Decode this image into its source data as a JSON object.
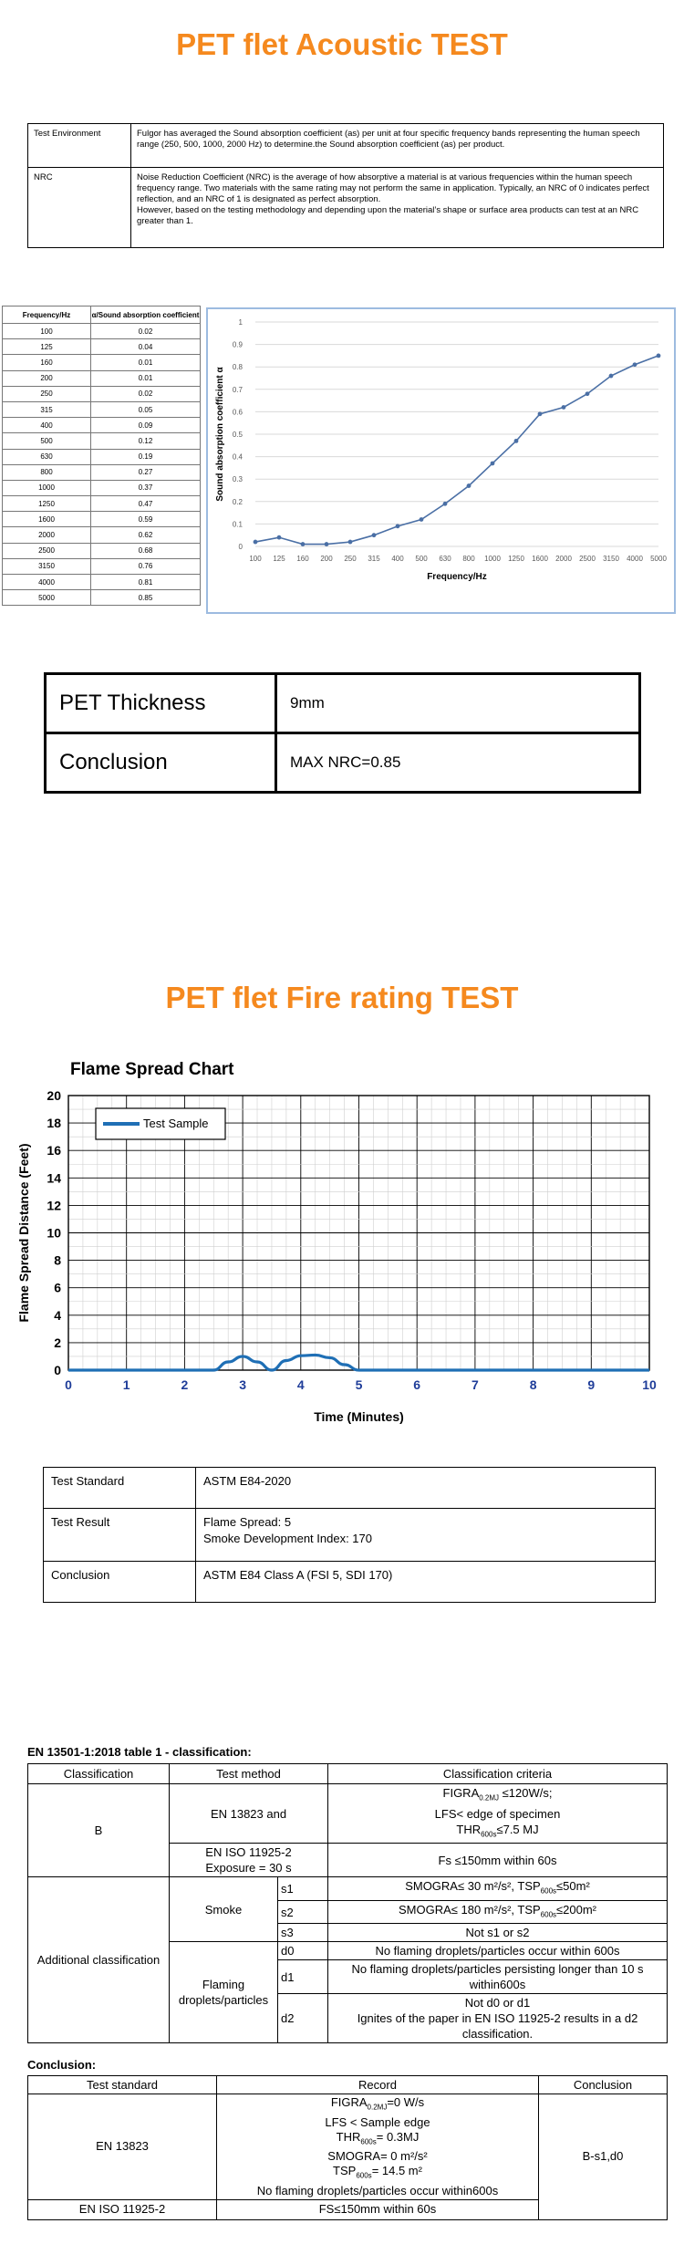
{
  "acoustic": {
    "title": "PET flet Acoustic TEST",
    "env_label": "Test Environment",
    "env_text": "Fulgor has averaged the Sound absorption coefficient (as) per unit at four specific frequency bands representing the human speech range (250, 500, 1000, 2000 Hz) to determine.the Sound absorption coefficient (as) per product.",
    "nrc_label": "NRC",
    "nrc_text_1": "Noise Reduction Coefficient (NRC) is the average of how absorptive a material is at various frequencies within the human speech frequency range. Two materials with the same rating may not perform the same in application. Typically, an NRC of 0 indicates perfect reflection, and an NRC of 1 is designated as perfect absorption.",
    "nrc_text_2": "However, based on the testing methodology and depending upon the material’s shape or surface area products can test at an NRC greater than 1.",
    "table_headers": [
      "Frequency/Hz",
      "α/Sound absorption coefficient"
    ],
    "table_rows": [
      [
        "100",
        "0.02"
      ],
      [
        "125",
        "0.04"
      ],
      [
        "160",
        "0.01"
      ],
      [
        "200",
        "0.01"
      ],
      [
        "250",
        "0.02"
      ],
      [
        "315",
        "0.05"
      ],
      [
        "400",
        "0.09"
      ],
      [
        "500",
        "0.12"
      ],
      [
        "630",
        "0.19"
      ],
      [
        "800",
        "0.27"
      ],
      [
        "1000",
        "0.37"
      ],
      [
        "1250",
        "0.47"
      ],
      [
        "1600",
        "0.59"
      ],
      [
        "2000",
        "0.62"
      ],
      [
        "2500",
        "0.68"
      ],
      [
        "3150",
        "0.76"
      ],
      [
        "4000",
        "0.81"
      ],
      [
        "5000",
        "0.85"
      ]
    ],
    "thickness_label": "PET Thickness",
    "thickness_value": "9mm",
    "conclusion_label": "Conclusion",
    "conclusion_value": "MAX NRC=0.85"
  },
  "fire": {
    "title": "PET flet Fire rating TEST",
    "std_label": "Test Standard",
    "std_value": "ASTM E84-2020",
    "result_label": "Test Result",
    "result_line1": "Flame Spread: 5",
    "result_line2": "Smoke Development Index: 170",
    "conc_label": "Conclusion",
    "conc_value": "ASTM E84 Class A (FSI 5, SDI 170)"
  },
  "en13501": {
    "heading": "EN 13501-1:2018 table 1 - classification:",
    "headers": [
      "Classification",
      "Test method",
      "Classification criteria"
    ],
    "class_b": "B",
    "en13823_and": "EN 13823 and",
    "figra": "FIGRA",
    "figra_sub": "0.2MJ",
    "figra_rest": " ≤120W/s;",
    "lfs_edge": "LFS< edge of specimen",
    "thr": "THR",
    "thr_sub": "600s",
    "thr_rest": "≤7.5 MJ",
    "en11925": "EN ISO 11925-2",
    "exposure": "Exposure = 30 s",
    "fs_criteria": "Fs ≤150mm within 60s",
    "additional": "Additional classification",
    "smoke": "Smoke",
    "s1": "s1",
    "s1_text": "SMOGRA≤ 30 m²/s², TSP",
    "s1_sub": "600s",
    "s1_rest": "≤50m²",
    "s2": "s2",
    "s2_text": "SMOGRA≤ 180 m²/s², TSP",
    "s2_sub": "600s",
    "s2_rest": "≤200m²",
    "s3": "s3",
    "s3_text": "Not s1 or s2",
    "flaming": "Flaming droplets/particles",
    "d0": "d0",
    "d0_text": "No flaming droplets/particles occur within 600s",
    "d1": "d1",
    "d1_text": "No flaming droplets/particles persisting longer than 10 s within600s",
    "d2": "d2",
    "d2_text_1": "Not d0 or d1",
    "d2_text_2": "Ignites of the paper in EN ISO 11925-2 results in a d2 classification."
  },
  "conclusion": {
    "heading": "Conclusion:",
    "headers": [
      "Test standard",
      "Record",
      "Conclusion"
    ],
    "en13823": "EN 13823",
    "rec_figra": "FIGRA",
    "rec_figra_sub": "0.2MJ",
    "rec_figra_rest": "=0 W/s",
    "rec_lfs": "LFS < Sample edge",
    "rec_thr": "THR",
    "rec_thr_sub": "600s",
    "rec_thr_rest": "= 0.3MJ",
    "rec_smogra": "SMOGRA= 0 m²/s²",
    "rec_tsp": "TSP",
    "rec_tsp_sub": "600s",
    "rec_tsp_rest": "= 14.5 m²",
    "rec_droplets": "No flaming droplets/particles occur within600s",
    "result": "B-s1,d0",
    "en11925": "EN ISO 11925-2",
    "fs_record": "FS≤150mm within 60s"
  },
  "chart_data": [
    {
      "type": "line",
      "title": "",
      "xlabel": "Frequency/Hz",
      "ylabel": "Sound absorption coefficient α",
      "ylim": [
        0,
        1
      ],
      "yticks": [
        "0",
        "0.1",
        "0.2",
        "0.3",
        "0.4",
        "0.5",
        "0.6",
        "0.7",
        "0.8",
        "0.9",
        "1"
      ],
      "categories": [
        "100",
        "125",
        "160",
        "200",
        "250",
        "315",
        "400",
        "500",
        "630",
        "800",
        "1000",
        "1250",
        "1600",
        "2000",
        "2500",
        "3150",
        "4000",
        "5000"
      ],
      "values": [
        0.02,
        0.04,
        0.01,
        0.01,
        0.02,
        0.05,
        0.09,
        0.12,
        0.19,
        0.27,
        0.37,
        0.47,
        0.59,
        0.62,
        0.68,
        0.76,
        0.81,
        0.85
      ],
      "grid": true,
      "color": "#4a6fa5"
    },
    {
      "type": "line",
      "title": "Flame Spread Chart",
      "xlabel": "Time (Minutes)",
      "ylabel": "Flame Spread Distance (Feet)",
      "xlim": [
        0,
        10
      ],
      "ylim": [
        0,
        20
      ],
      "xticks": [
        "0",
        "1",
        "2",
        "3",
        "4",
        "5",
        "6",
        "7",
        "8",
        "9",
        "10"
      ],
      "yticks": [
        "0",
        "2",
        "4",
        "6",
        "8",
        "10",
        "12",
        "14",
        "16",
        "18",
        "20"
      ],
      "series": [
        {
          "name": "Test Sample",
          "x": [
            0,
            2.5,
            2.75,
            3.0,
            3.25,
            3.5,
            3.75,
            4.0,
            4.25,
            4.5,
            4.75,
            5.0,
            10
          ],
          "y": [
            0,
            0,
            0.6,
            1.0,
            0.6,
            0,
            0.7,
            1.05,
            1.1,
            0.9,
            0.4,
            0,
            0
          ]
        }
      ],
      "legend": "top-left",
      "grid": true,
      "color": "#1f6fb5",
      "tick_color": "#1f3d99"
    }
  ]
}
